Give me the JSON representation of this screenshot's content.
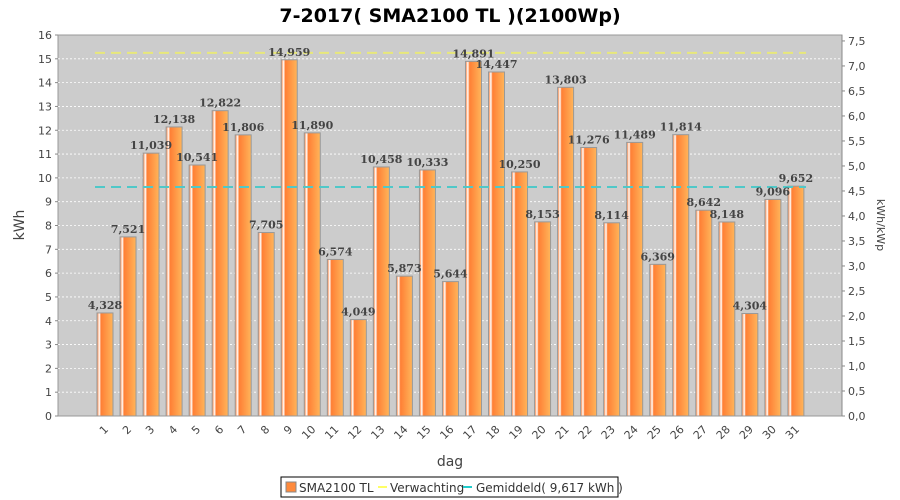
{
  "chart_data": {
    "type": "bar",
    "title": "7-2017( SMA2100 TL )(2100Wp)",
    "xlabel": "dag",
    "ylabel": "kWh",
    "y2label": "kWh/kWp",
    "ylim": [
      0,
      16
    ],
    "y2lim": [
      0,
      7.619
    ],
    "yticks": [
      "0",
      "1",
      "2",
      "3",
      "4",
      "5",
      "6",
      "7",
      "8",
      "9",
      "10",
      "11",
      "12",
      "13",
      "14",
      "15",
      "16"
    ],
    "y2ticks": [
      "0,0",
      "0,5",
      "1,0",
      "1,5",
      "2,0",
      "2,5",
      "3,0",
      "3,5",
      "4,0",
      "4,5",
      "5,0",
      "5,5",
      "6,0",
      "6,5",
      "7,0",
      "7,5"
    ],
    "grid": true,
    "categories": [
      "1",
      "2",
      "3",
      "4",
      "5",
      "6",
      "7",
      "8",
      "9",
      "10",
      "11",
      "12",
      "13",
      "14",
      "15",
      "16",
      "17",
      "18",
      "19",
      "20",
      "21",
      "22",
      "23",
      "24",
      "25",
      "26",
      "27",
      "28",
      "29",
      "30",
      "31"
    ],
    "values": [
      4.328,
      7.521,
      11.039,
      12.138,
      10.541,
      12.822,
      11.806,
      7.705,
      14.959,
      11.89,
      6.574,
      4.049,
      10.458,
      5.873,
      10.333,
      5.644,
      14.891,
      14.447,
      10.25,
      8.153,
      13.803,
      11.276,
      8.114,
      11.489,
      6.369,
      11.814,
      8.642,
      8.148,
      4.304,
      9.096,
      9.652
    ],
    "value_labels": [
      "4,328",
      "7,521",
      "11,039",
      "12,138",
      "10,541",
      "12,822",
      "11,806",
      "7,705",
      "14,959",
      "11,890",
      "6,574",
      "4,049",
      "10,458",
      "5,873",
      "10,333",
      "5,644",
      "14,891",
      "14,447",
      "10,250",
      "8,153",
      "13,803",
      "11,276",
      "8,114",
      "11,489",
      "6,369",
      "11,814",
      "8,642",
      "8,148",
      "4,304",
      "9,096",
      "9,652"
    ],
    "reference_lines": [
      {
        "name": "Verwachting",
        "value": 15.25,
        "color": "#e8e87a"
      },
      {
        "name": "Gemiddeld",
        "value": 9.617,
        "color": "#4fc8c8"
      }
    ],
    "series_color": "#ff8a3c",
    "legend": {
      "placement": "bottom",
      "items": [
        "SMA2100 TL",
        "Verwachting",
        "Gemiddeld( 9,617 kWh )"
      ]
    }
  }
}
